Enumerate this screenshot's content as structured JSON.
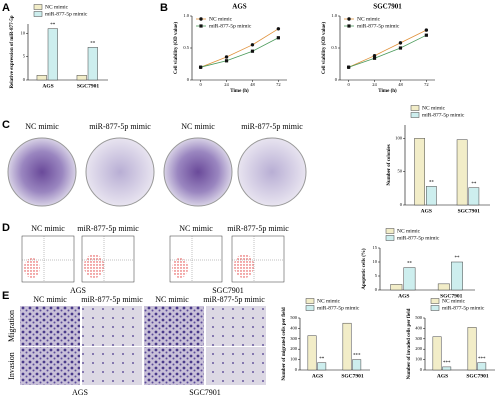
{
  "panel_labels": [
    "A",
    "B",
    "C",
    "D",
    "E"
  ],
  "image_panels": {
    "C": {
      "headings": [
        "NC mimic",
        "miR-877-5p mimic",
        "NC mimic",
        "miR-877-5p mimic"
      ]
    },
    "D": {
      "headings": [
        "NC mimic",
        "miR-877-5p mimic",
        "NC mimic",
        "miR-877-5p mimic"
      ],
      "cell_lines": [
        "AGS",
        "SGC7901"
      ]
    },
    "E": {
      "headings": [
        "NC mimic",
        "miR-877-5p mimic",
        "NC mimic",
        "miR-877-5p mimic"
      ],
      "rows": [
        "Migration",
        "Invasion"
      ],
      "cell_lines": [
        "AGS",
        "SGC7901"
      ]
    }
  },
  "chart_data": [
    {
      "type": "bar",
      "ylabel": "Relative expression of miR-877-5p",
      "categories": [
        "AGS",
        "SGC7901"
      ],
      "series": [
        {
          "name": "NC mimic",
          "color": "#f2edc8",
          "values": [
            1,
            1
          ]
        },
        {
          "name": "miR-877-5p mimic",
          "color": "#cdeeee",
          "values": [
            11,
            7
          ],
          "significance": [
            "**",
            "**"
          ]
        }
      ],
      "ylim": [
        0,
        12
      ],
      "yticks": [
        0,
        5,
        10
      ],
      "legend": "top"
    },
    {
      "type": "line",
      "title": "AGS",
      "xlabel": "Time (h)",
      "ylabel": "Cell viability (OD value)",
      "x": [
        0,
        24,
        48,
        72
      ],
      "xlim": [
        -8,
        80
      ],
      "xticks": [
        0,
        24,
        48,
        72
      ],
      "series": [
        {
          "name": "NC mimic",
          "color": "#e0913a",
          "marker": "circle",
          "values": [
            0.2,
            0.36,
            0.55,
            0.8
          ]
        },
        {
          "name": "miR-877-5p mimic",
          "color": "#4a9a5a",
          "marker": "square",
          "values": [
            0.2,
            0.3,
            0.45,
            0.66
          ]
        }
      ],
      "ylim": [
        0,
        1
      ],
      "yticks": [
        0,
        0.5,
        {
          "value": 1,
          "label": "1.0"
        }
      ],
      "legend": "upper left"
    },
    {
      "type": "line",
      "title": "SGC7901",
      "xlabel": "Time (h)",
      "ylabel": "Cell viability (OD value)",
      "x": [
        0,
        24,
        48,
        72
      ],
      "xlim": [
        -8,
        80
      ],
      "xticks": [
        0,
        24,
        48,
        72
      ],
      "series": [
        {
          "name": "NC mimic",
          "color": "#e0913a",
          "marker": "circle",
          "values": [
            0.2,
            0.38,
            0.58,
            0.78
          ]
        },
        {
          "name": "miR-877-5p mimic",
          "color": "#4a9a5a",
          "marker": "square",
          "values": [
            0.2,
            0.34,
            0.5,
            0.7
          ]
        }
      ],
      "ylim": [
        0,
        1
      ],
      "yticks": [
        0,
        0.5,
        {
          "value": 1,
          "label": "1.0"
        }
      ],
      "legend": "upper left"
    },
    {
      "type": "bar",
      "ylabel": "Number of colonies",
      "categories": [
        "AGS",
        "SGC7901"
      ],
      "series": [
        {
          "name": "NC mimic",
          "color": "#f2edc8",
          "values": [
            100,
            98
          ]
        },
        {
          "name": "miR-877-5p mimic",
          "color": "#cdeeee",
          "values": [
            28,
            26
          ],
          "significance": [
            "**",
            "**"
          ]
        }
      ],
      "ylim": [
        0,
        120
      ],
      "yticks": [
        0,
        50,
        100
      ],
      "legend": "top"
    },
    {
      "type": "bar",
      "ylabel": "Apoptotic cells (%)",
      "categories": [
        "AGS",
        "SGC7901"
      ],
      "series": [
        {
          "name": "NC mimic",
          "color": "#f2edc8",
          "values": [
            2,
            2.2
          ]
        },
        {
          "name": "miR-877-5p mimic",
          "color": "#cdeeee",
          "values": [
            8,
            10
          ],
          "significance": [
            "**",
            "**"
          ]
        }
      ],
      "ylim": [
        0,
        15
      ],
      "yticks": [
        0,
        5,
        10,
        15
      ],
      "legend": "top"
    },
    {
      "type": "bar",
      "ylabel": "Number of migrated cells per field",
      "categories": [
        "AGS",
        "SGC7901"
      ],
      "series": [
        {
          "name": "NC mimic",
          "color": "#f2edc8",
          "values": [
            330,
            450
          ]
        },
        {
          "name": "miR-877-5p mimic",
          "color": "#cdeeee",
          "values": [
            70,
            100
          ],
          "significance": [
            "**",
            "***"
          ]
        }
      ],
      "ylim": [
        0,
        500
      ],
      "yticks": [
        0,
        100,
        200,
        300,
        400,
        500
      ],
      "legend": "top"
    },
    {
      "type": "bar",
      "ylabel": "Number of invaded cells per field",
      "categories": [
        "AGS",
        "SGC7901"
      ],
      "series": [
        {
          "name": "NC mimic",
          "color": "#f2edc8",
          "values": [
            320,
            410
          ]
        },
        {
          "name": "miR-877-5p mimic",
          "color": "#cdeeee",
          "values": [
            30,
            70
          ],
          "significance": [
            "***",
            "***"
          ]
        }
      ],
      "ylim": [
        0,
        500
      ],
      "yticks": [
        0,
        100,
        200,
        300,
        400,
        500
      ],
      "legend": "top"
    }
  ]
}
